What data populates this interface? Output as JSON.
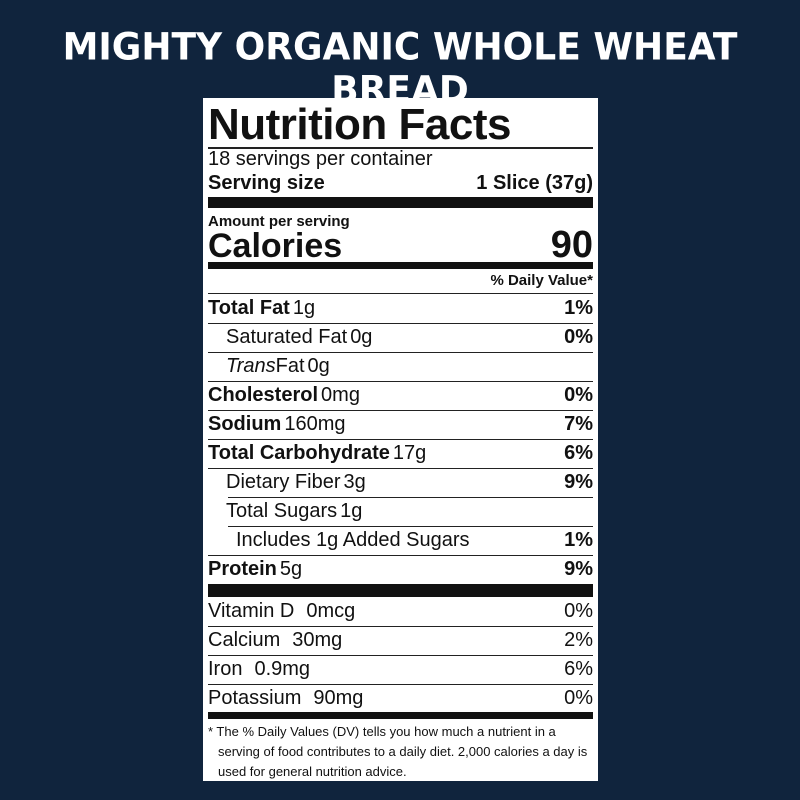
{
  "title": "MIGHTY ORGANIC WHOLE WHEAT BREAD",
  "label": {
    "heading": "Nutrition Facts",
    "servings": "18 servings per container",
    "serving_size_label": "Serving size",
    "serving_size_value": "1 Slice (37g)",
    "amount_per_serving": "Amount per serving",
    "calories_label": "Calories",
    "calories_value": "90",
    "daily_value_header": "% Daily Value*",
    "nutrients": [
      {
        "name": "Total Fat",
        "amount": "1g",
        "dv": "1%",
        "bold": true,
        "indent": 0
      },
      {
        "name": "Saturated Fat",
        "amount": "0g",
        "dv": "0%",
        "bold": false,
        "indent": 1
      },
      {
        "name": "Trans",
        "name2": "Fat",
        "amount": "0g",
        "dv": "",
        "bold": false,
        "indent": 1,
        "italic": true
      },
      {
        "name": "Cholesterol",
        "amount": "0mg",
        "dv": "0%",
        "bold": true,
        "indent": 0
      },
      {
        "name": "Sodium",
        "amount": "160mg",
        "dv": "7%",
        "bold": true,
        "indent": 0
      },
      {
        "name": "Total Carbohydrate",
        "amount": "17g",
        "dv": "6%",
        "bold": true,
        "indent": 0
      },
      {
        "name": "Dietary Fiber",
        "amount": "3g",
        "dv": "9%",
        "bold": false,
        "indent": 1
      },
      {
        "name": "Total Sugars",
        "amount": "1g",
        "dv": "",
        "bold": false,
        "indent": 1
      },
      {
        "name": "Includes 1g Added Sugars",
        "amount": "",
        "dv": "1%",
        "bold": false,
        "indent": 2
      },
      {
        "name": "Protein",
        "amount": "5g",
        "dv": "9%",
        "bold": true,
        "indent": 0
      }
    ],
    "vitamins": [
      {
        "name": "Vitamin D",
        "amount": "0mcg",
        "dv": "0%"
      },
      {
        "name": "Calcium",
        "amount": "30mg",
        "dv": "2%"
      },
      {
        "name": "Iron",
        "amount": "0.9mg",
        "dv": "6%"
      },
      {
        "name": "Potassium",
        "amount": "90mg",
        "dv": "0%"
      }
    ],
    "footnote": "* The % Daily Values (DV) tells you how much a nutrient in a serving of food contributes to a daily diet. 2,000 calories a day is used for general nutrition advice."
  },
  "colors": {
    "background": "#10243d",
    "label": "#ffffff",
    "text": "#111111"
  }
}
